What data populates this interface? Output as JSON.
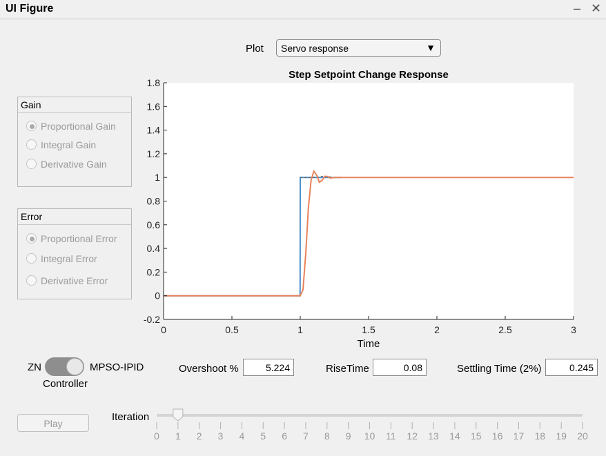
{
  "window": {
    "title": "UI Figure",
    "minimize_glyph": "–",
    "close_glyph": "✕"
  },
  "plot_selector": {
    "label": "Plot",
    "selected": "Servo response",
    "arrow_glyph": "▼"
  },
  "gain_panel": {
    "title": "Gain",
    "options": [
      {
        "label": "Proportional Gain",
        "selected": true
      },
      {
        "label": "Integral Gain",
        "selected": false
      },
      {
        "label": "Derivative Gain",
        "selected": false
      }
    ]
  },
  "error_panel": {
    "title": "Error",
    "options": [
      {
        "label": "Proportional Error",
        "selected": true
      },
      {
        "label": "Integral Error",
        "selected": false
      },
      {
        "label": "Derivative Error",
        "selected": false
      }
    ]
  },
  "controller": {
    "left_label": "ZN",
    "right_label": "MPSO-IPID",
    "caption": "Controller",
    "state": "MPSO-IPID"
  },
  "metrics": {
    "overshoot_label": "Overshoot %",
    "overshoot_value": "5.224",
    "risetime_label": "RiseTime",
    "risetime_value": "0.08",
    "settling_label": "Settling Time (2%)",
    "settling_value": "0.245"
  },
  "play": {
    "label": "Play"
  },
  "iteration": {
    "label": "Iteration",
    "value": 1,
    "min": 0,
    "max": 20,
    "ticks": [
      "0",
      "1",
      "2",
      "3",
      "4",
      "5",
      "6",
      "7",
      "8",
      "9",
      "10",
      "11",
      "12",
      "13",
      "14",
      "15",
      "16",
      "17",
      "18",
      "19",
      "20"
    ]
  },
  "chart_data": {
    "type": "line",
    "title": "Step Setpoint Change Response",
    "xlabel": "Time",
    "ylabel": "",
    "xlim": [
      0,
      3
    ],
    "ylim": [
      -0.2,
      1.8
    ],
    "xticks": [
      "0",
      "0.5",
      "1",
      "1.5",
      "2",
      "2.5",
      "3"
    ],
    "yticks": [
      "-0.2",
      "0",
      "0.2",
      "0.4",
      "0.6",
      "0.8",
      "1",
      "1.2",
      "1.4",
      "1.6",
      "1.8"
    ],
    "grid": false,
    "series": [
      {
        "color": "#4e8fcb",
        "x": [
          0,
          0.999,
          1.0,
          1.3
        ],
        "y": [
          0,
          0,
          1,
          1
        ],
        "trailing": {
          "x": [
            1.0,
            1.04,
            1.08,
            1.12,
            1.16,
            1.2,
            1.24,
            1.28,
            1.32
          ],
          "y": [
            1,
            1,
            1.0,
            1.0,
            1.01,
            1.01,
            1.0,
            1.0,
            1.0
          ]
        }
      },
      {
        "color": "#e8825a",
        "x": [
          0,
          1.0,
          1.02,
          1.04,
          1.06,
          1.08,
          1.1,
          1.12,
          1.14,
          1.16,
          1.18,
          1.2,
          1.22,
          1.24,
          1.26,
          1.3,
          1.4,
          3.0
        ],
        "y": [
          0,
          0,
          0.05,
          0.35,
          0.75,
          0.98,
          1.052,
          1.02,
          0.96,
          0.975,
          1.01,
          1.008,
          0.995,
          0.998,
          1.0,
          1.0,
          1.0,
          1.0
        ]
      }
    ]
  }
}
